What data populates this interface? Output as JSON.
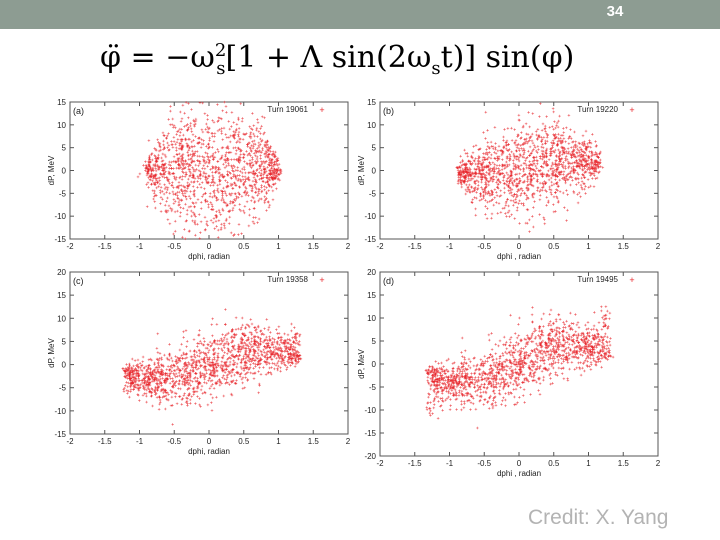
{
  "header": {
    "slide_number": "34"
  },
  "equation": {
    "lhs": "φ̈ = −ω",
    "sup": "2",
    "sub": "s",
    "mid": "[1 + Λ sin(2ω",
    "sub2": "s",
    "rhs": "t)] sin(φ)"
  },
  "credit": "Credit: X. Yang",
  "colors": {
    "points": "#e8262b",
    "topbar": "#8d9c92",
    "credit": "#b3b3b3"
  },
  "chart_data": [
    {
      "type": "scatter",
      "panel_label": "(a)",
      "title": "Turn 19061",
      "xlabel": "dphi, radian",
      "ylabel": "dP, MeV",
      "xlim": [
        -2,
        2
      ],
      "ylim": [
        -15,
        15
      ],
      "xticks": [
        "-2",
        "-1.5",
        "-1",
        "-0.5",
        "0",
        "0.5",
        "1",
        "1.5",
        "2"
      ],
      "yticks": [
        "15",
        "10",
        "5",
        "0",
        "-5",
        "-10",
        "-15"
      ],
      "distribution": {
        "shape": "ellipse",
        "x_center": 0.05,
        "x_halfwidth": 0.95,
        "dp_center": 0.0,
        "dp_halfwidth": 7.0,
        "s_curve_amplitude": 0.0,
        "tail_amplitude": 0.0,
        "points": 1400
      }
    },
    {
      "type": "scatter",
      "panel_label": "(b)",
      "title": "Turn 19220",
      "xlabel": "dphi , radian",
      "ylabel": "dP, MeV",
      "xlim": [
        -2,
        2
      ],
      "ylim": [
        -15,
        15
      ],
      "xticks": [
        "-2",
        "-1.5",
        "-1",
        "-0.5",
        "0",
        "0.5",
        "1",
        "1.5",
        "2"
      ],
      "yticks": [
        "15",
        "10",
        "5",
        "0",
        "-5",
        "-10",
        "-15"
      ],
      "distribution": {
        "shape": "tilted-ellipse",
        "x_center": 0.15,
        "x_halfwidth": 1.0,
        "dp_center": 0.5,
        "dp_halfwidth": 5.0,
        "s_curve_amplitude": 1.5,
        "tail_amplitude": 3.0,
        "points": 1400
      }
    },
    {
      "type": "scatter",
      "panel_label": "(c)",
      "title": "Turn 19358",
      "xlabel": "dphi, radian",
      "ylabel": "dP, MeV",
      "xlim": [
        -2,
        2
      ],
      "ylim": [
        -15,
        20
      ],
      "xticks": [
        "-2",
        "-1.5",
        "-1",
        "-0.5",
        "0",
        "0.5",
        "1",
        "1.5",
        "2"
      ],
      "yticks": [
        "20",
        "15",
        "10",
        "5",
        "0",
        "-5",
        "-10",
        "-15"
      ],
      "distribution": {
        "shape": "s-curve",
        "x_center": 0.05,
        "x_halfwidth": 1.25,
        "dp_center": 0.0,
        "dp_halfwidth": 3.5,
        "s_curve_amplitude": 3.0,
        "tail_amplitude": 6.0,
        "points": 1500
      }
    },
    {
      "type": "scatter",
      "panel_label": "(d)",
      "title": "Turn 19495",
      "xlabel": "dphi , radian",
      "ylabel": "dP, MeV",
      "xlim": [
        -2,
        2
      ],
      "ylim": [
        -20,
        20
      ],
      "xticks": [
        "-2",
        "-1.5",
        "-1",
        "-0.5",
        "0",
        "0.5",
        "1",
        "1.5",
        "2"
      ],
      "yticks": [
        "20",
        "15",
        "10",
        "5",
        "0",
        "-5",
        "-10",
        "-15",
        "-20"
      ],
      "distribution": {
        "shape": "s-curve",
        "x_center": 0.0,
        "x_halfwidth": 1.3,
        "dp_center": 0.0,
        "dp_halfwidth": 3.5,
        "s_curve_amplitude": 4.0,
        "tail_amplitude": 11.0,
        "points": 1500
      }
    }
  ]
}
